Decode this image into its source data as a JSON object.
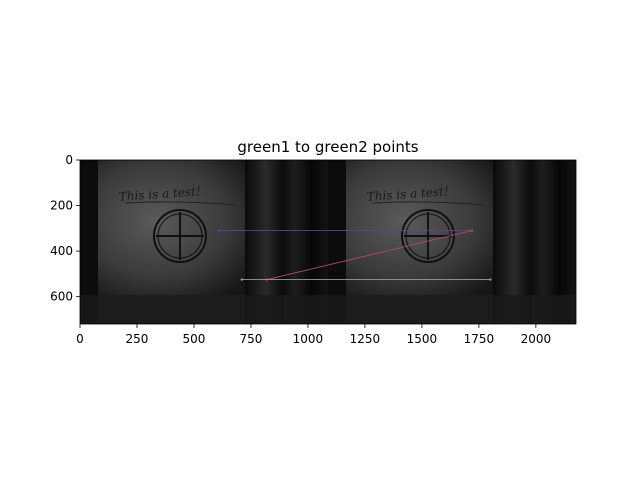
{
  "chart_data": {
    "type": "image",
    "title": "green1 to green2 points",
    "xlabel": "",
    "ylabel": "",
    "xlim": [
      0,
      2176
    ],
    "ylim": [
      720,
      0
    ],
    "x_ticks": [
      0,
      250,
      500,
      750,
      1000,
      1250,
      1500,
      1750,
      2000
    ],
    "y_ticks": [
      0,
      200,
      400,
      600
    ],
    "grid": false,
    "panel_split_x": 1088,
    "sample_image_text": "This is a test!",
    "match_lines": [
      {
        "x1": 610,
        "y1": 310,
        "x2": 1720,
        "y2": 310,
        "color": "#6a3c9a"
      },
      {
        "x1": 820,
        "y1": 525,
        "x2": 1720,
        "y2": 310,
        "color": "#b04a6a"
      },
      {
        "x1": 710,
        "y1": 525,
        "x2": 1800,
        "y2": 525,
        "color": "#9a9a9a"
      }
    ]
  }
}
